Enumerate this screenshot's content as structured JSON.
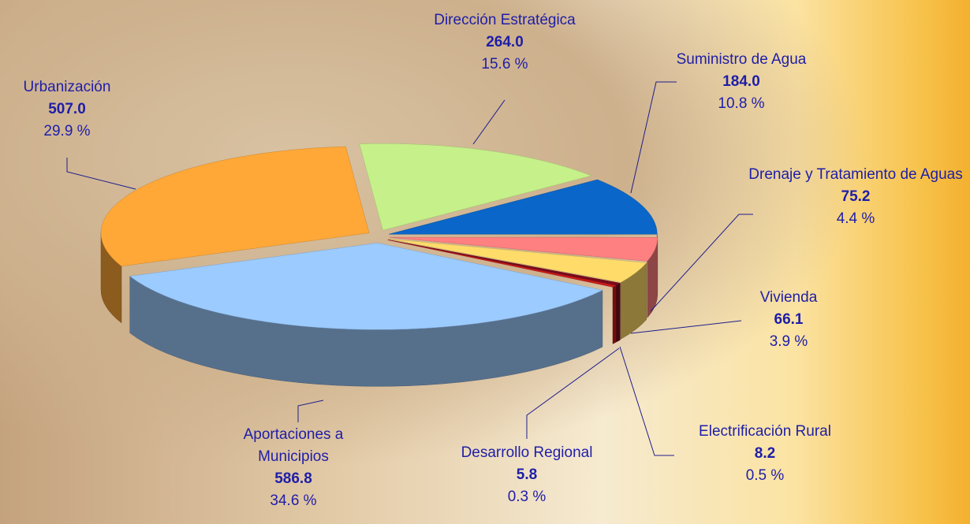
{
  "chart_data": {
    "type": "pie",
    "categories": [
      "Dirección Estratégica",
      "Suministro de Agua",
      "Drenaje y Tratamiento de Aguas",
      "Vivienda",
      "Electrificación Rural",
      "Desarrollo Regional",
      "Aportaciones a Municipios",
      "Urbanización"
    ],
    "values": [
      264.0,
      184.0,
      75.2,
      66.1,
      8.2,
      5.8,
      586.8,
      507.0
    ],
    "value_labels": [
      "264.0",
      "184.0",
      "75.2",
      "66.1",
      "8.2",
      "5.8",
      "586.8",
      "507.0"
    ],
    "percents": [
      15.6,
      10.8,
      4.4,
      3.9,
      0.5,
      0.3,
      34.6,
      29.9
    ],
    "percent_labels": [
      "15.6 %",
      "10.8 %",
      "4.4 %",
      "3.9 %",
      "0.5 %",
      "0.3 %",
      "34.6 %",
      "29.9 %"
    ],
    "colors": [
      "#c6f08a",
      "#0a66c8",
      "#ff8080",
      "#ffdc6a",
      "#7a0a1a",
      "#cc1a1a",
      "#9ccbff",
      "#ffa838"
    ]
  }
}
